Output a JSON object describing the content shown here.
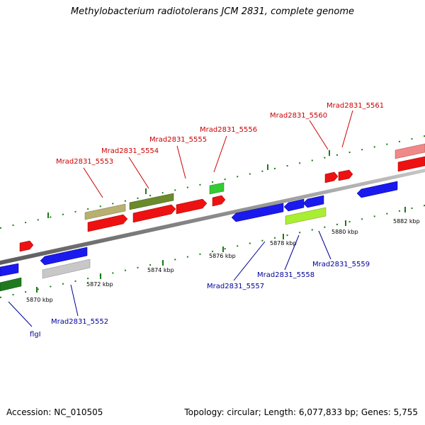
{
  "title": "Methylobacterium radiotolerans JCM 2831, complete genome",
  "accession": "Accession: NC_010505",
  "summary": "Topology: circular; Length: 6,077,833 bp; Genes: 5,755",
  "colors": {
    "forward_label": "#cc0000",
    "reverse_label": "#000099",
    "backbone": "#8c8c8c",
    "tick": "#1a7a1a"
  },
  "position_labels": [
    {
      "text": "5870 kbp"
    },
    {
      "text": "5872 kbp"
    },
    {
      "text": "5874 kbp"
    },
    {
      "text": "5876 kbp"
    },
    {
      "text": "5878 kbp"
    },
    {
      "text": "5880 kbp"
    },
    {
      "text": "5882 kbp"
    }
  ],
  "genes": [
    {
      "label": "flgI",
      "strand": "reverse",
      "color": "#1f7a1f"
    },
    {
      "label": "Mrad2831_5552",
      "strand": "reverse",
      "color": "#c8c8c8"
    },
    {
      "label": "Mrad2831_5553",
      "strand": "forward",
      "color": "#b8b070"
    },
    {
      "label": "Mrad2831_5554",
      "strand": "forward",
      "color": "#6b8a2a"
    },
    {
      "label": "Mrad2831_5555",
      "strand": "forward",
      "color": "#ee1111"
    },
    {
      "label": "Mrad2831_5556",
      "strand": "forward",
      "color": "#33cc33"
    },
    {
      "label": "Mrad2831_5557",
      "strand": "reverse",
      "color": "#1a1aee"
    },
    {
      "label": "Mrad2831_5558",
      "strand": "reverse",
      "color": "#1a1aee"
    },
    {
      "label": "Mrad2831_5559",
      "strand": "reverse",
      "color": "#1a1aee"
    },
    {
      "label": "Mrad2831_5560",
      "strand": "forward",
      "color": "#ee1111"
    },
    {
      "label": "Mrad2831_5561",
      "strand": "forward",
      "color": "#ee1111"
    }
  ]
}
